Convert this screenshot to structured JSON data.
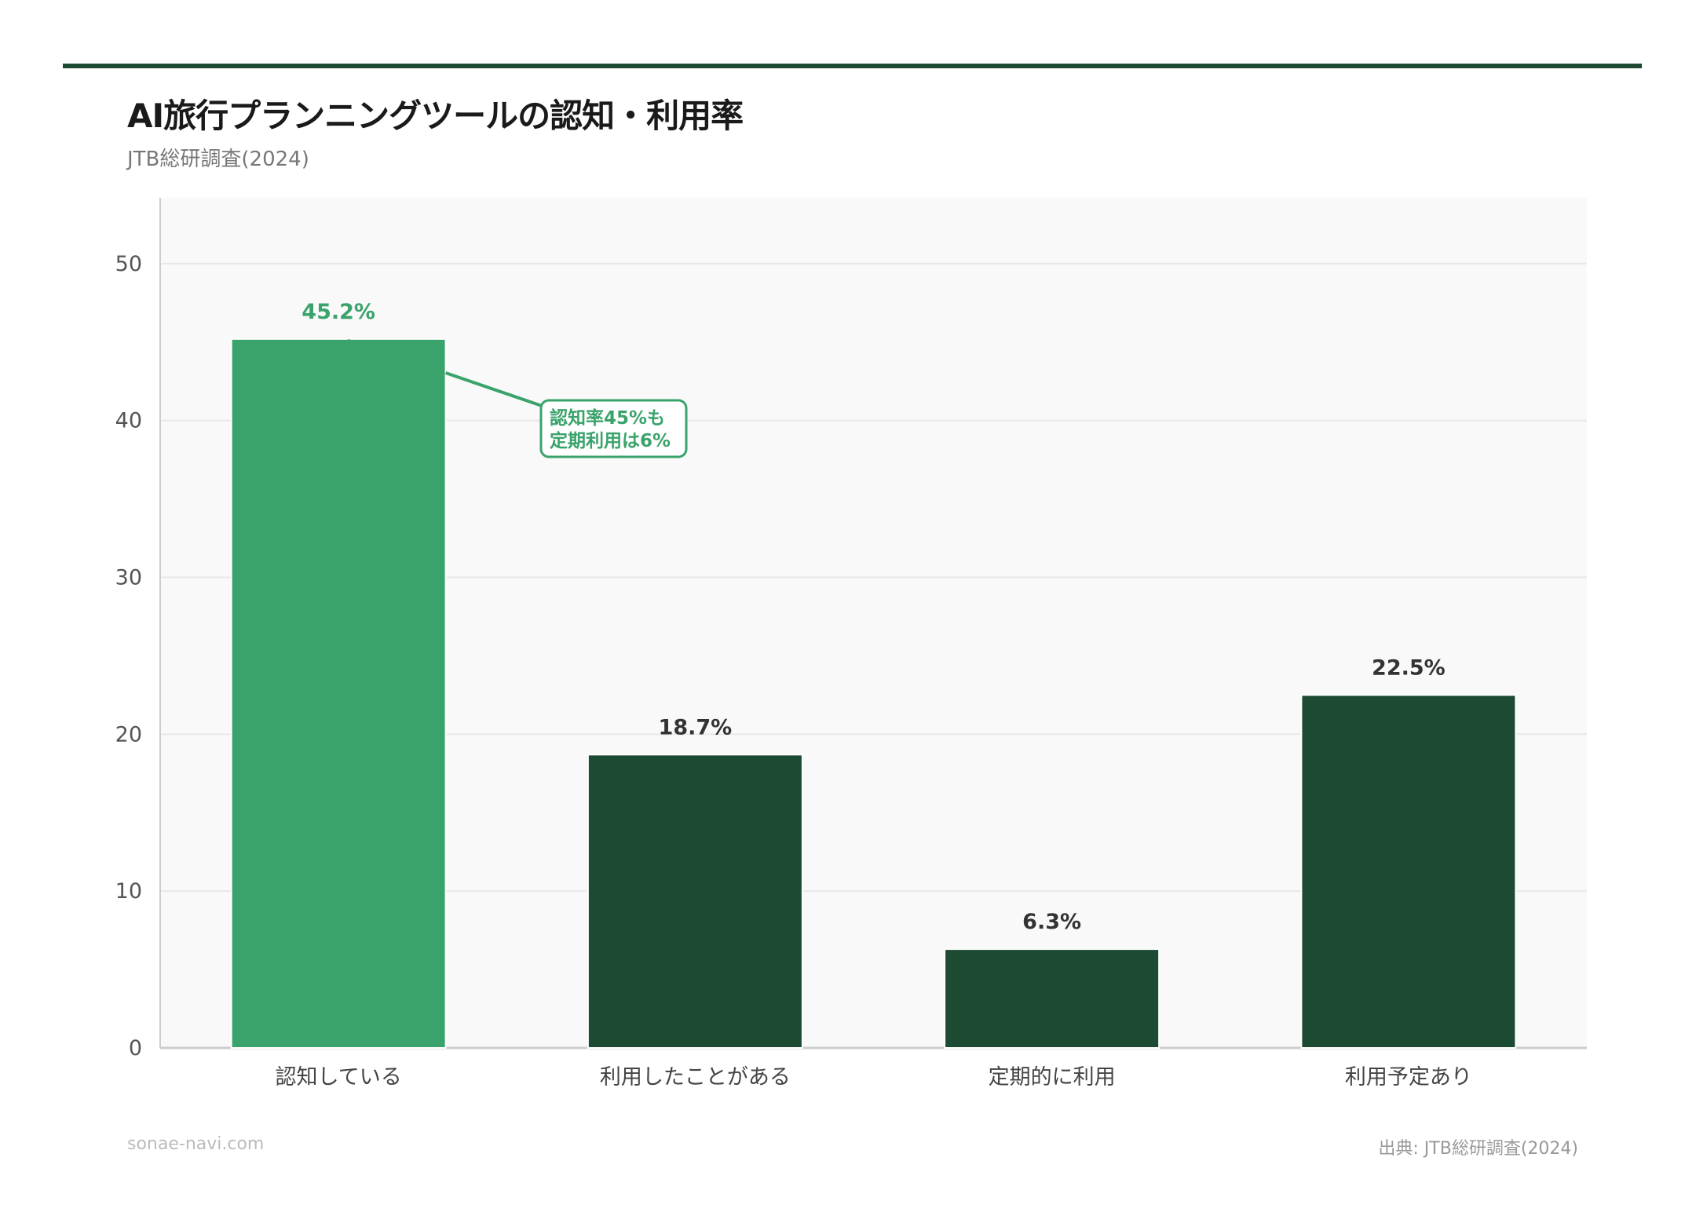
{
  "header": {
    "title": "AI旅行プランニングツールの認知・利用率",
    "subtitle": "JTB総研調査(2024)"
  },
  "footer": {
    "site": "sonae-navi.com",
    "source": "出典: JTB総研調査(2024)"
  },
  "colors": {
    "accent": "#3aa36b",
    "bar": "#1c4a33",
    "topline": "#1c4a33",
    "plot_bg": "#f9f9f9",
    "grid": "#e8e8e8"
  },
  "chart_data": {
    "type": "bar",
    "title": "AI旅行プランニングツールの認知・利用率",
    "subtitle": "JTB総研調査(2024)",
    "categories": [
      "認知している",
      "利用したことがある",
      "定期的に利用",
      "利用予定あり"
    ],
    "values": [
      45.2,
      18.7,
      6.3,
      22.5
    ],
    "value_labels": [
      "45.2%",
      "18.7%",
      "6.3%",
      "22.5%"
    ],
    "highlight_index": 0,
    "ylim": [
      0,
      54.2
    ],
    "yticks": [
      0,
      10,
      20,
      30,
      40,
      50
    ],
    "grid": true,
    "annotation": {
      "lines": [
        "認知率45%も",
        "定期利用は6%"
      ],
      "target_index": 0
    }
  }
}
